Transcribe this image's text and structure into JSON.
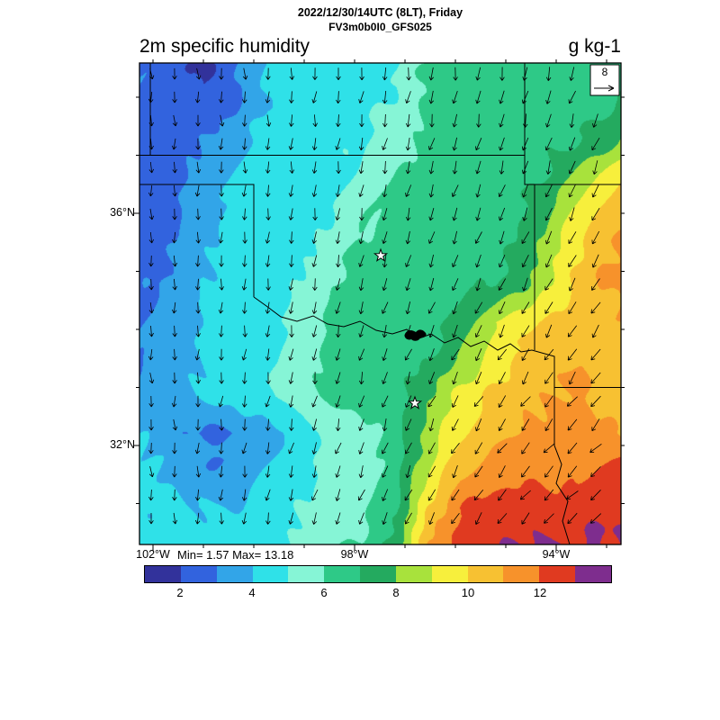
{
  "header": {
    "datetime_line": "2022/12/30/14UTC (8LT), Friday",
    "model_line": "FV3m0b0I0_GFS025",
    "field_title": "2m specific humidity",
    "units_label": "g kg-1"
  },
  "axes": {
    "lat_tick_labels": [
      "36°N",
      "32°N"
    ],
    "lat_tick_values": [
      36,
      32
    ],
    "lon_tick_labels": [
      "102°W",
      "98°W",
      "94°W"
    ],
    "lon_tick_values": [
      102,
      98,
      94
    ]
  },
  "annotations": {
    "minmax_label": "Min= 1.57 Max= 13.18",
    "min": 1.57,
    "max": 13.18
  },
  "wind_reference": {
    "label": "8"
  },
  "colorbar": {
    "value_start": 1,
    "value_step": 1,
    "tick_labels": [
      "2",
      "4",
      "6",
      "8",
      "10",
      "12"
    ],
    "colors": [
      "#32329B",
      "#3263DE",
      "#32A5E8",
      "#2FE1E8",
      "#86F5D6",
      "#2EC987",
      "#24AA5F",
      "#A8E23C",
      "#F7EF3C",
      "#F7C132",
      "#F7922B",
      "#E03A20",
      "#7E2D8E"
    ]
  },
  "chart_data": {
    "type": "heatmap",
    "title": "2m specific humidity",
    "units": "g kg-1",
    "valid_time": "2022/12/30/14UTC (8LT), Friday",
    "model": "FV3m0b0I0_GFS025",
    "min": 1.57,
    "max": 13.18,
    "levels": [
      1,
      2,
      3,
      4,
      5,
      6,
      7,
      8,
      9,
      10,
      11,
      12,
      13,
      14
    ],
    "palette": [
      "#32329B",
      "#3263DE",
      "#32A5E8",
      "#2FE1E8",
      "#86F5D6",
      "#2EC987",
      "#24AA5F",
      "#A8E23C",
      "#F7EF3C",
      "#F7C132",
      "#F7922B",
      "#E03A20",
      "#7E2D8E"
    ],
    "wind_reference_speed": 8,
    "grid": {
      "note": "estimated field values in g/kg, rows north to south",
      "lats_degN": [
        38.6,
        37.96,
        37.32,
        36.69,
        36.05,
        35.41,
        34.77,
        34.13,
        33.49,
        32.86,
        32.22,
        31.58,
        30.94,
        30.3
      ],
      "lons_degW": [
        102.3,
        101.66,
        101.02,
        100.38,
        99.74,
        99.1,
        98.46,
        97.82,
        97.18,
        96.54,
        95.9,
        95.26,
        94.62,
        93.98,
        93.34,
        92.7
      ],
      "values": [
        [
          2.8,
          2.6,
          1.8,
          3.0,
          4.2,
          4.4,
          4.5,
          4.6,
          5.0,
          6.2,
          6.4,
          6.4,
          6.5,
          6.5,
          6.6,
          6.7
        ],
        [
          2.7,
          2.5,
          1.8,
          2.9,
          4.2,
          4.4,
          4.5,
          4.6,
          5.2,
          6.3,
          6.4,
          6.5,
          6.5,
          6.6,
          6.7,
          7.0
        ],
        [
          2.6,
          2.4,
          2.9,
          3.6,
          4.3,
          4.4,
          4.6,
          4.8,
          5.6,
          6.4,
          6.5,
          6.5,
          6.6,
          6.8,
          7.0,
          7.8
        ],
        [
          2.5,
          2.7,
          3.3,
          4.0,
          4.4,
          4.5,
          4.7,
          5.2,
          6.0,
          6.5,
          6.5,
          6.6,
          6.7,
          7.2,
          8.6,
          9.8
        ],
        [
          2.4,
          2.8,
          3.6,
          4.2,
          4.5,
          4.6,
          5.0,
          5.8,
          6.3,
          6.5,
          6.6,
          6.6,
          6.9,
          8.2,
          9.8,
          10.9
        ],
        [
          2.6,
          3.0,
          3.8,
          4.3,
          4.5,
          4.8,
          5.6,
          6.3,
          6.5,
          6.6,
          6.6,
          6.7,
          7.2,
          8.8,
          10.4,
          11.3
        ],
        [
          2.7,
          3.2,
          4.0,
          4.3,
          4.6,
          5.2,
          6.0,
          6.5,
          6.6,
          6.6,
          6.7,
          6.9,
          7.6,
          9.2,
          10.8,
          11.2
        ],
        [
          2.9,
          3.5,
          4.1,
          4.4,
          4.7,
          5.4,
          6.2,
          6.5,
          6.6,
          6.7,
          7.4,
          8.8,
          9.8,
          10.4,
          10.8,
          11.0
        ],
        [
          3.1,
          3.7,
          4.2,
          4.4,
          4.8,
          5.5,
          6.3,
          6.5,
          6.6,
          6.9,
          8.0,
          9.4,
          10.3,
          10.8,
          11.0,
          10.8
        ],
        [
          3.3,
          3.8,
          4.3,
          4.5,
          4.9,
          5.5,
          6.2,
          6.4,
          6.6,
          7.8,
          9.3,
          10.2,
          10.9,
          11.2,
          11.0,
          10.5
        ],
        [
          3.9,
          3.4,
          2.9,
          2.9,
          3.3,
          4.4,
          5.3,
          5.8,
          6.5,
          8.3,
          9.8,
          10.9,
          11.2,
          11.4,
          11.2,
          10.8
        ],
        [
          4.1,
          3.9,
          3.2,
          3.3,
          4.1,
          4.6,
          5.2,
          5.6,
          6.6,
          8.8,
          10.8,
          11.3,
          11.6,
          11.4,
          11.8,
          12.3
        ],
        [
          4.3,
          4.1,
          3.9,
          4.1,
          4.5,
          5.0,
          5.5,
          5.9,
          6.9,
          10.2,
          11.9,
          12.4,
          12.5,
          12.4,
          12.6,
          12.9
        ],
        [
          4.3,
          4.3,
          4.1,
          4.3,
          4.7,
          5.2,
          5.7,
          6.1,
          7.4,
          11.2,
          12.5,
          12.8,
          12.9,
          13.05,
          13.1,
          13.1
        ]
      ]
    }
  }
}
